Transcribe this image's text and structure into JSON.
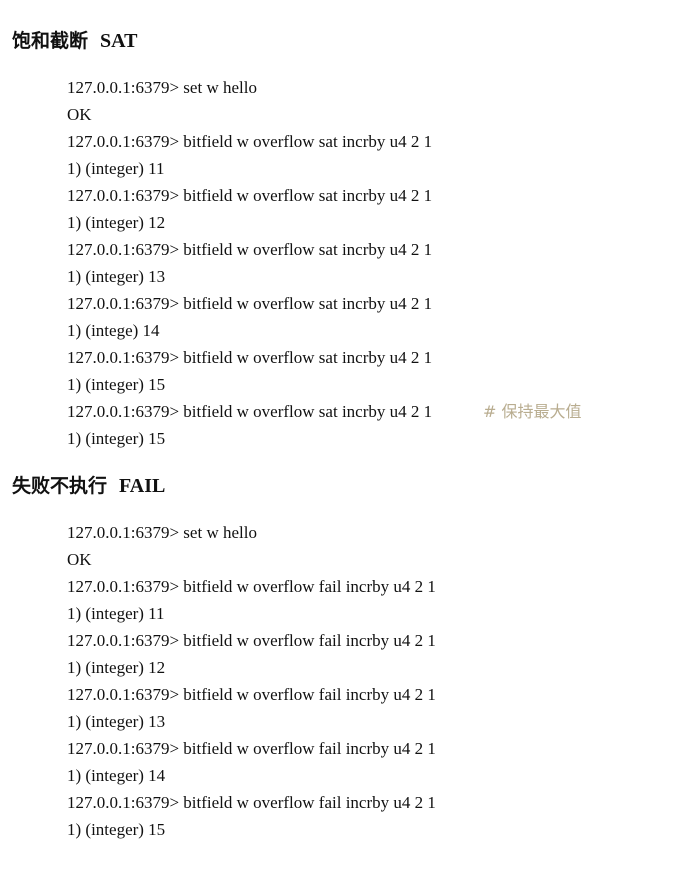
{
  "sections": [
    {
      "id": "sat",
      "heading_zh": "饱和截断",
      "heading_en": "SAT",
      "lines": [
        {
          "text": "127.0.0.1:6379> set w hello"
        },
        {
          "text": "OK"
        },
        {
          "text": "127.0.0.1:6379> bitfield w overflow sat incrby u4 2 1"
        },
        {
          "text": "1) (integer) 11"
        },
        {
          "text": "127.0.0.1:6379> bitfield w overflow sat incrby u4 2 1"
        },
        {
          "text": "1) (integer) 12"
        },
        {
          "text": "127.0.0.1:6379> bitfield w overflow sat incrby u4 2 1"
        },
        {
          "text": "1) (integer) 13"
        },
        {
          "text": "127.0.0.1:6379> bitfield w overflow sat incrby u4 2 1"
        },
        {
          "text": "1) (intege) 14"
        },
        {
          "text": "127.0.0.1:6379> bitfield w overflow sat incrby u4 2 1"
        },
        {
          "text": "1) (integer) 15"
        },
        {
          "text": "127.0.0.1:6379> bitfield w overflow sat incrby u4 2 1",
          "comment": "# 保持最大值"
        },
        {
          "text": "1) (integer) 15"
        }
      ]
    },
    {
      "id": "fail",
      "heading_zh": "失败不执行",
      "heading_en": "FAIL",
      "lines": [
        {
          "text": "127.0.0.1:6379> set w hello"
        },
        {
          "text": "OK"
        },
        {
          "text": "127.0.0.1:6379> bitfield w overflow fail incrby u4 2 1"
        },
        {
          "text": "1) (integer) 11"
        },
        {
          "text": "127.0.0.1:6379> bitfield w overflow fail incrby u4 2 1"
        },
        {
          "text": "1) (integer) 12"
        },
        {
          "text": "127.0.0.1:6379> bitfield w overflow fail incrby u4 2 1"
        },
        {
          "text": "1) (integer) 13"
        },
        {
          "text": "127.0.0.1:6379> bitfield w overflow fail incrby u4 2 1"
        },
        {
          "text": "1) (integer) 14"
        },
        {
          "text": "127.0.0.1:6379> bitfield w overflow fail incrby u4 2 1"
        },
        {
          "text": "1) (integer) 15"
        }
      ]
    }
  ],
  "colors": {
    "text": "#111111",
    "comment": "#b9ad90",
    "background": "#ffffff"
  }
}
